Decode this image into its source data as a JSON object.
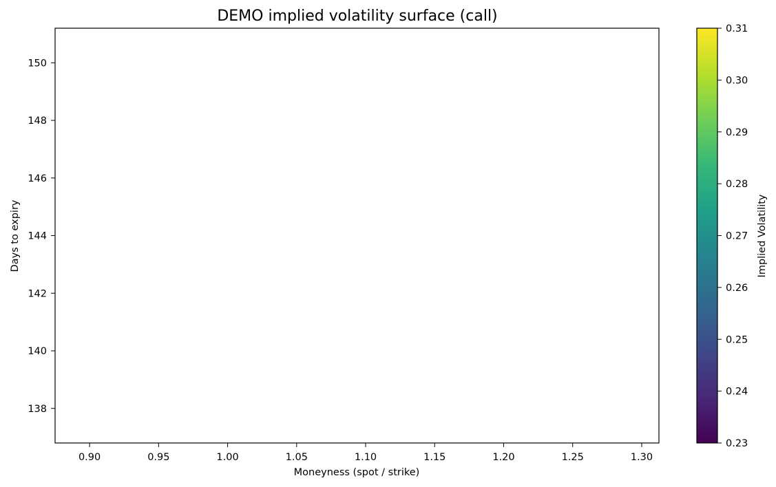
{
  "chart_data": {
    "type": "heatmap",
    "title": "DEMO implied volatility surface (call)",
    "xlabel": "Moneyness (spot / strike)",
    "ylabel": "Days to expiry",
    "xlim": [
      0.875,
      1.3125
    ],
    "ylim": [
      136.8,
      151.2
    ],
    "xticks": [
      0.9,
      0.95,
      1.0,
      1.05,
      1.1,
      1.15,
      1.2,
      1.25,
      1.3
    ],
    "xtick_labels": [
      "0.90",
      "0.95",
      "1.00",
      "1.05",
      "1.10",
      "1.15",
      "1.20",
      "1.25",
      "1.30"
    ],
    "yticks": [
      138,
      140,
      142,
      144,
      146,
      148,
      150
    ],
    "ytick_labels": [
      "138",
      "140",
      "142",
      "144",
      "146",
      "148",
      "150"
    ],
    "grid": false,
    "data": [],
    "colorbar": {
      "label": "Implied Volatility",
      "colormap": "viridis",
      "range": [
        0.23,
        0.31
      ],
      "ticks": [
        0.23,
        0.24,
        0.25,
        0.26,
        0.27,
        0.28,
        0.29,
        0.3,
        0.31
      ],
      "tick_labels": [
        "0.23",
        "0.24",
        "0.25",
        "0.26",
        "0.27",
        "0.28",
        "0.29",
        "0.30",
        "0.31"
      ],
      "colors": [
        "#440154",
        "#482878",
        "#3e4989",
        "#31688e",
        "#26828e",
        "#1f9e89",
        "#35b779",
        "#6ece58",
        "#b5de2b",
        "#fde725"
      ]
    }
  }
}
